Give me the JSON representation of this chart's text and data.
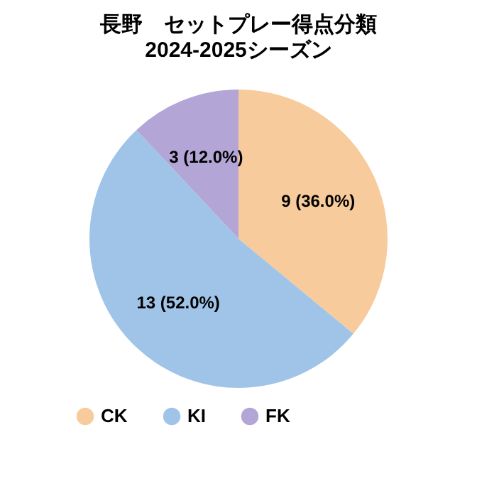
{
  "chart_data": {
    "type": "pie",
    "title": "長野　セットプレー得点分類",
    "subtitle": "2024-2025シーズン",
    "categories": [
      "CK",
      "KI",
      "FK"
    ],
    "values": [
      9,
      13,
      3
    ],
    "value_labels": [
      "9 (36.0%)",
      "13 (52.0%)",
      "3 (12.0%)"
    ],
    "colors": [
      "#f8cb9c",
      "#a0c4e8",
      "#b3a5d6"
    ],
    "legend": "bottom"
  }
}
